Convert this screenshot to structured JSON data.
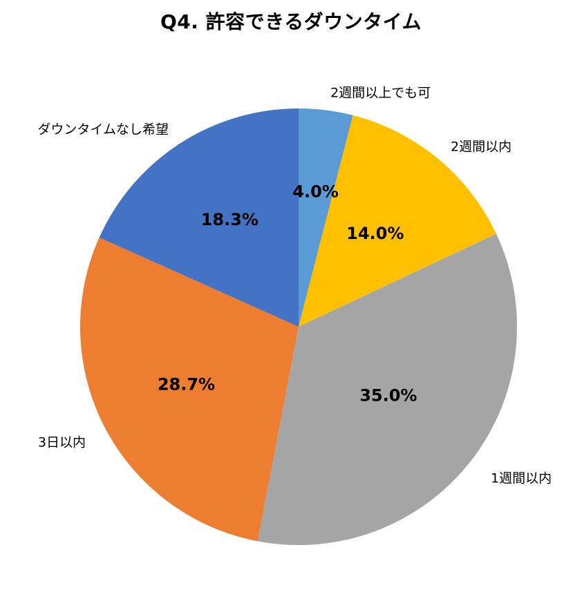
{
  "chart_data": {
    "type": "pie",
    "title": "Q4. 許容できるダウンタイム",
    "categories": [
      "2週間以上でも可",
      "2週間以内",
      "1週間以内",
      "3日以内",
      "ダウンタイムなし希望"
    ],
    "values": [
      4.0,
      14.0,
      35.0,
      28.7,
      18.3
    ],
    "value_labels": [
      "4.0%",
      "14.0%",
      "35.0%",
      "28.7%",
      "18.3%"
    ],
    "colors": [
      "#5B9BD5",
      "#FFC000",
      "#A5A5A5",
      "#ED7D31",
      "#4472C4"
    ],
    "start_angle": "12 o'clock",
    "direction": "clockwise",
    "legend": "none"
  }
}
